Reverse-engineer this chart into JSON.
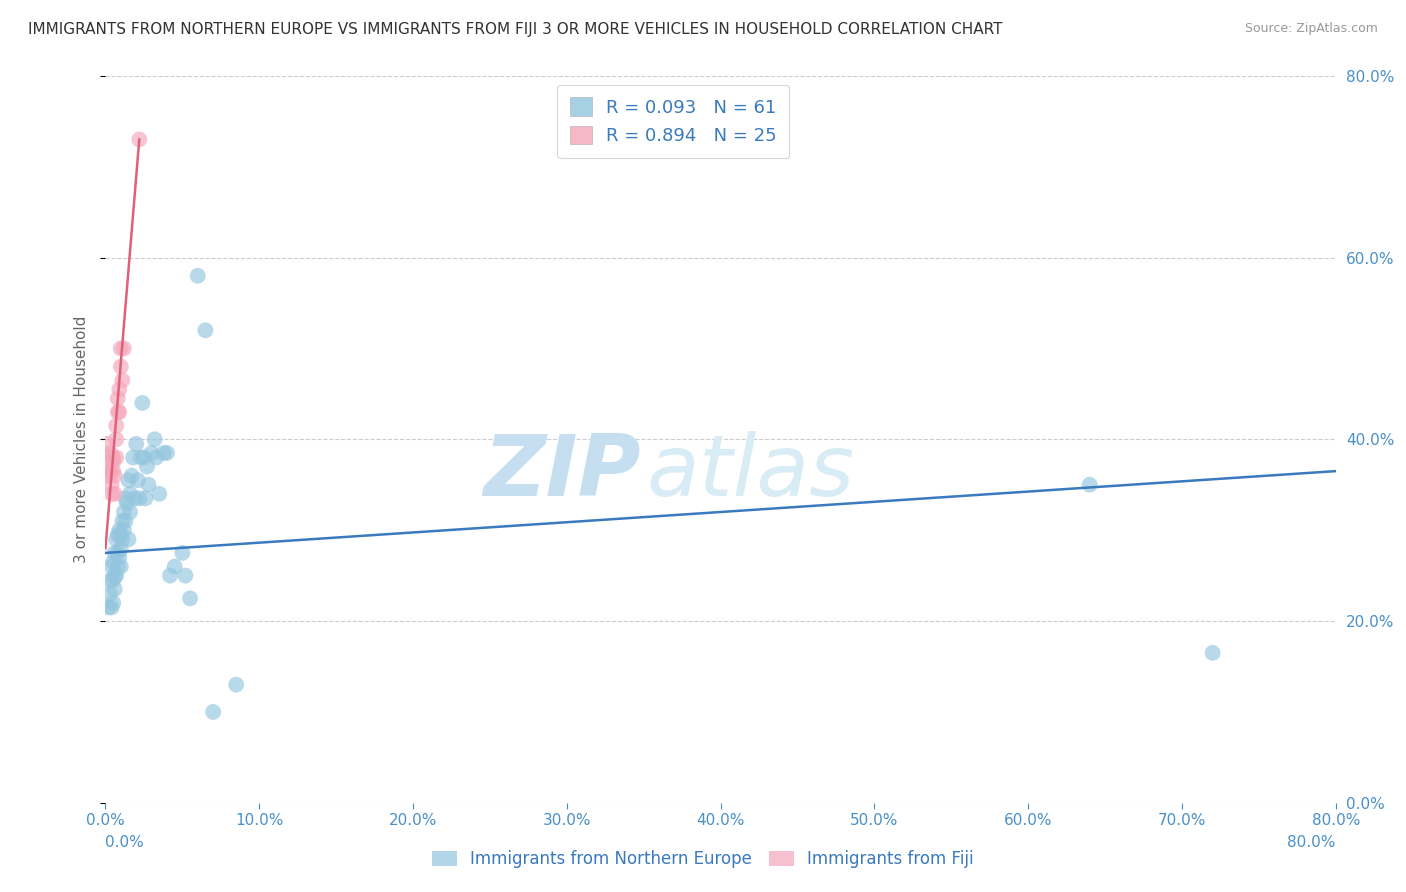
{
  "title": "IMMIGRANTS FROM NORTHERN EUROPE VS IMMIGRANTS FROM FIJI 3 OR MORE VEHICLES IN HOUSEHOLD CORRELATION CHART",
  "source": "Source: ZipAtlas.com",
  "ylabel_left": "3 or more Vehicles in Household",
  "xmin": 0.0,
  "xmax": 0.8,
  "ymin": 0.0,
  "ymax": 0.8,
  "x_ticks": [
    0.0,
    0.1,
    0.2,
    0.3,
    0.4,
    0.5,
    0.6,
    0.7,
    0.8
  ],
  "y_ticks": [
    0.0,
    0.2,
    0.4,
    0.6,
    0.8
  ],
  "blue_series_label": "Immigrants from Northern Europe",
  "pink_series_label": "Immigrants from Fiji",
  "blue_R": "R = 0.093",
  "blue_N": "N = 61",
  "pink_R": "R = 0.894",
  "pink_N": "N = 25",
  "blue_color": "#92c5de",
  "pink_color": "#f4a6ba",
  "blue_line_color": "#3a7abf",
  "pink_line_color": "#e0607a",
  "watermark_zip": "ZIP",
  "watermark_atlas": "atlas",
  "blue_points_x": [
    0.002,
    0.003,
    0.003,
    0.004,
    0.004,
    0.005,
    0.005,
    0.005,
    0.006,
    0.006,
    0.006,
    0.007,
    0.007,
    0.008,
    0.008,
    0.008,
    0.009,
    0.009,
    0.01,
    0.01,
    0.01,
    0.011,
    0.011,
    0.012,
    0.012,
    0.013,
    0.013,
    0.014,
    0.015,
    0.015,
    0.016,
    0.016,
    0.017,
    0.018,
    0.019,
    0.02,
    0.021,
    0.022,
    0.023,
    0.024,
    0.025,
    0.026,
    0.027,
    0.028,
    0.03,
    0.032,
    0.033,
    0.035,
    0.038,
    0.04,
    0.042,
    0.045,
    0.05,
    0.052,
    0.055,
    0.06,
    0.065,
    0.07,
    0.085,
    0.64,
    0.72
  ],
  "blue_points_y": [
    0.215,
    0.23,
    0.245,
    0.215,
    0.26,
    0.22,
    0.245,
    0.265,
    0.235,
    0.25,
    0.275,
    0.25,
    0.29,
    0.26,
    0.275,
    0.295,
    0.27,
    0.3,
    0.28,
    0.26,
    0.295,
    0.31,
    0.29,
    0.32,
    0.3,
    0.31,
    0.335,
    0.33,
    0.29,
    0.355,
    0.32,
    0.34,
    0.36,
    0.38,
    0.335,
    0.395,
    0.355,
    0.335,
    0.38,
    0.44,
    0.38,
    0.335,
    0.37,
    0.35,
    0.385,
    0.4,
    0.38,
    0.34,
    0.385,
    0.385,
    0.25,
    0.26,
    0.275,
    0.25,
    0.225,
    0.58,
    0.52,
    0.1,
    0.13,
    0.35,
    0.165
  ],
  "pink_points_x": [
    0.001,
    0.001,
    0.002,
    0.002,
    0.003,
    0.003,
    0.004,
    0.004,
    0.005,
    0.005,
    0.005,
    0.006,
    0.006,
    0.007,
    0.007,
    0.007,
    0.008,
    0.008,
    0.009,
    0.009,
    0.01,
    0.01,
    0.011,
    0.012,
    0.022
  ],
  "pink_points_y": [
    0.395,
    0.36,
    0.365,
    0.38,
    0.365,
    0.385,
    0.35,
    0.34,
    0.375,
    0.38,
    0.365,
    0.34,
    0.36,
    0.38,
    0.4,
    0.415,
    0.43,
    0.445,
    0.43,
    0.455,
    0.48,
    0.5,
    0.465,
    0.5,
    0.73
  ],
  "blue_trend_x": [
    0.0,
    0.8
  ],
  "blue_trend_y": [
    0.275,
    0.365
  ],
  "pink_trend_x": [
    0.0,
    0.022
  ],
  "pink_trend_y": [
    0.28,
    0.73
  ],
  "grid_color": "#cccccc",
  "bg_color": "#ffffff",
  "title_fontsize": 11,
  "tick_label_color": "#4a90c8",
  "ylabel_color": "#666666"
}
